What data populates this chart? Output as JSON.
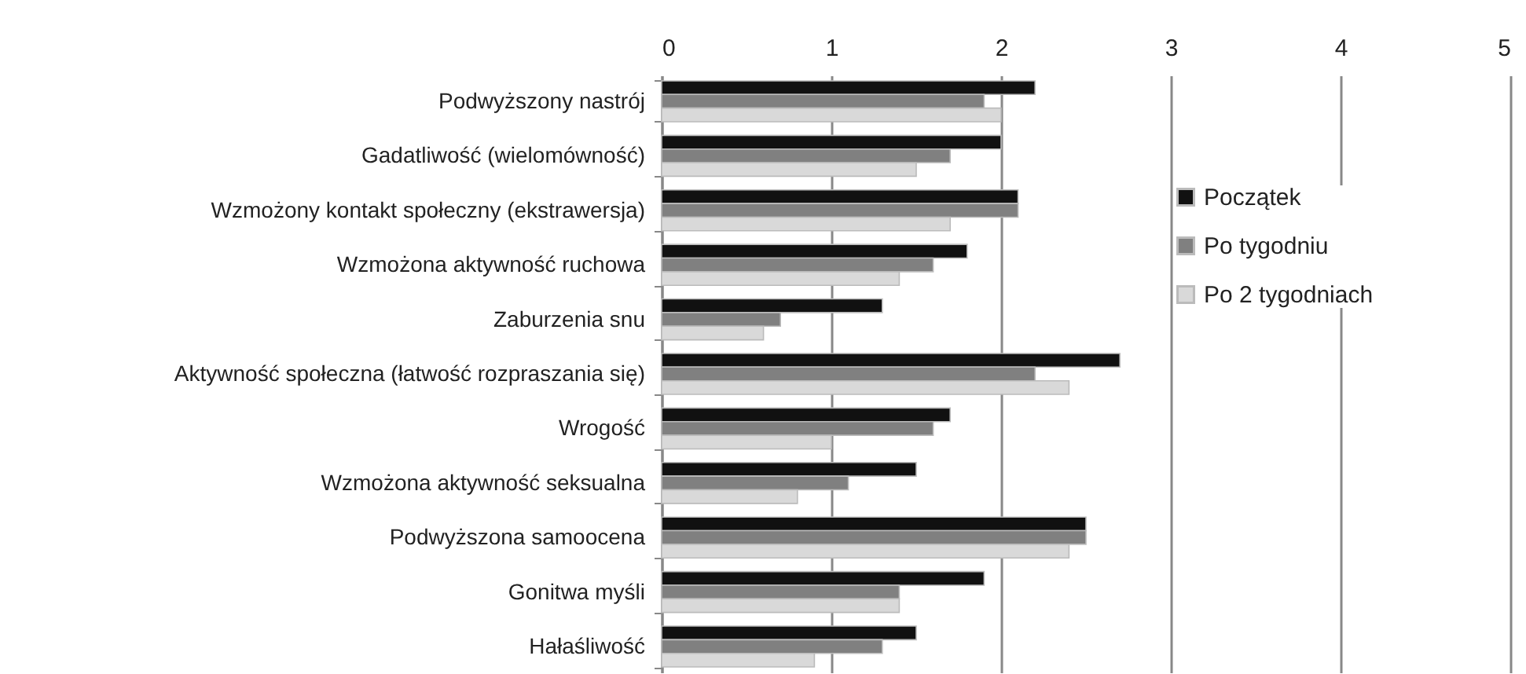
{
  "chart_data": {
    "type": "bar",
    "orientation": "horizontal",
    "categories": [
      "Podwyższony nastrój",
      "Gadatliwość (wielomówność)",
      "Wzmożony kontakt społeczny (ekstrawersja)",
      "Wzmożona aktywność ruchowa",
      "Zaburzenia snu",
      "Aktywność społeczna (łatwość rozpraszania się)",
      "Wrogość",
      "Wzmożona aktywność seksualna",
      "Podwyższona samoocena",
      "Gonitwa myśli",
      "Hałaśliwość"
    ],
    "series": [
      {
        "name": "Początek",
        "color": "#111111",
        "values": [
          2.2,
          2.0,
          2.1,
          1.8,
          1.3,
          2.7,
          1.7,
          1.5,
          2.5,
          1.9,
          1.5
        ]
      },
      {
        "name": "Po tygodniu",
        "color": "#808080",
        "values": [
          1.9,
          1.7,
          2.1,
          1.6,
          0.7,
          2.2,
          1.6,
          1.1,
          2.5,
          1.4,
          1.3
        ]
      },
      {
        "name": "Po 2 tygodniach",
        "color": "#d9d9d9",
        "values": [
          2.0,
          1.5,
          1.7,
          1.4,
          0.6,
          2.4,
          1.0,
          0.8,
          2.4,
          1.4,
          0.9
        ]
      }
    ],
    "xlim": [
      0,
      5
    ],
    "xticks": [
      0,
      1,
      2,
      3,
      4,
      5
    ],
    "grid": "x",
    "legend": "right"
  }
}
